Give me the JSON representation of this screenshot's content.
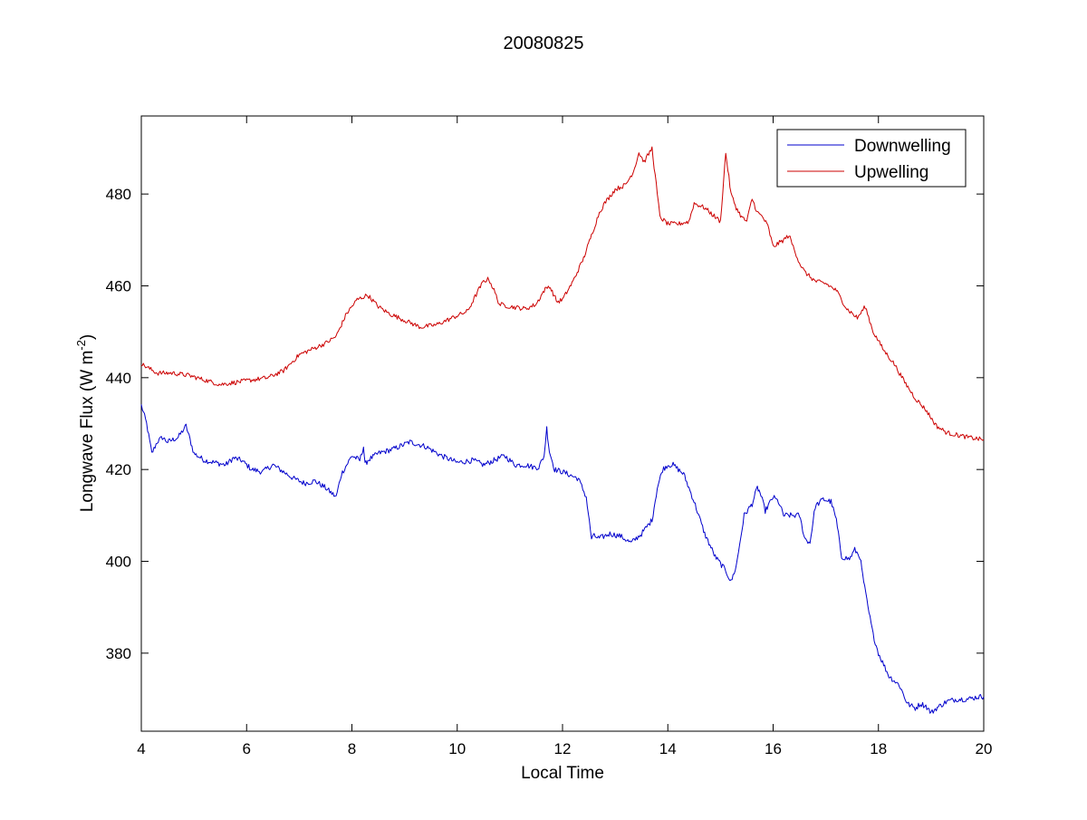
{
  "chart_data": {
    "type": "line",
    "title": "20080825",
    "xlabel": "Local Time",
    "ylabel_main": "Longwave Flux (W m",
    "ylabel_sup": "-2",
    "ylabel_close": ")",
    "xlim": [
      4,
      20
    ],
    "ylim": [
      363,
      497
    ],
    "xticks": [
      4,
      6,
      8,
      10,
      12,
      14,
      16,
      18,
      20
    ],
    "yticks": [
      380,
      400,
      420,
      440,
      460,
      480
    ],
    "grid": false,
    "legend_position": "top-right",
    "series": [
      {
        "name": "Downwelling",
        "color": "#0000cc",
        "noise": 0.6,
        "x": [
          4.0,
          4.1,
          4.2,
          4.3,
          4.4,
          4.5,
          4.6,
          4.7,
          4.85,
          5.0,
          5.2,
          5.4,
          5.6,
          5.75,
          5.9,
          6.1,
          6.3,
          6.5,
          6.7,
          6.9,
          7.1,
          7.3,
          7.5,
          7.7,
          7.8,
          8.0,
          8.15,
          8.22,
          8.25,
          8.3,
          8.5,
          8.8,
          9.1,
          9.4,
          9.7,
          10.0,
          10.3,
          10.5,
          10.7,
          10.9,
          11.1,
          11.3,
          11.45,
          11.55,
          11.65,
          11.7,
          11.75,
          11.85,
          12.0,
          12.3,
          12.45,
          12.55,
          12.6,
          12.7,
          12.9,
          13.1,
          13.3,
          13.5,
          13.7,
          13.8,
          13.9,
          14.0,
          14.1,
          14.3,
          14.5,
          14.7,
          14.9,
          15.1,
          15.2,
          15.3,
          15.45,
          15.6,
          15.7,
          15.75,
          15.85,
          16.0,
          16.1,
          16.2,
          16.35,
          16.5,
          16.6,
          16.7,
          16.8,
          16.95,
          17.1,
          17.2,
          17.3,
          17.45,
          17.55,
          17.65,
          17.7,
          17.8,
          17.9,
          18.0,
          18.2,
          18.4,
          18.55,
          18.7,
          18.8,
          18.9,
          19.0,
          19.1,
          19.3,
          19.5,
          19.7,
          19.9,
          20.0
        ],
        "values": [
          434,
          430,
          423.5,
          426,
          427,
          426,
          426.5,
          427,
          429.5,
          423.5,
          422,
          421.5,
          421,
          422.5,
          422,
          420,
          419.5,
          421,
          419.5,
          418,
          417,
          417.5,
          416,
          414,
          419,
          423,
          422,
          425,
          421,
          422,
          423.5,
          424.5,
          426,
          425,
          423,
          421.5,
          422,
          421,
          422,
          423,
          421,
          421,
          420.5,
          420.5,
          423,
          429,
          424,
          420,
          419.5,
          418,
          414,
          405,
          405.5,
          405,
          406,
          405.5,
          404,
          406,
          409,
          416,
          420,
          421,
          421,
          419,
          413,
          406,
          401,
          398,
          395.5,
          399,
          410,
          412.5,
          416,
          415,
          411,
          414,
          413,
          410,
          410,
          410,
          405,
          404,
          412,
          413.5,
          413,
          409,
          401,
          400.5,
          402.5,
          401,
          397,
          390,
          384,
          380,
          375,
          373,
          369,
          368,
          369,
          368.5,
          367,
          368,
          369.5,
          370,
          370,
          370.5,
          370.5
        ]
      },
      {
        "name": "Upwelling",
        "color": "#cc0000",
        "noise": 0.5,
        "x": [
          4.0,
          4.3,
          4.6,
          4.9,
          5.2,
          5.5,
          5.8,
          6.1,
          6.4,
          6.7,
          7.0,
          7.2,
          7.5,
          7.7,
          7.9,
          8.1,
          8.3,
          8.5,
          8.7,
          9.0,
          9.3,
          9.6,
          9.9,
          10.2,
          10.4,
          10.5,
          10.6,
          10.7,
          10.8,
          11.0,
          11.3,
          11.5,
          11.65,
          11.75,
          11.9,
          12.0,
          12.2,
          12.4,
          12.55,
          12.7,
          12.8,
          13.0,
          13.2,
          13.35,
          13.45,
          13.55,
          13.7,
          13.8,
          13.85,
          14.0,
          14.2,
          14.4,
          14.5,
          14.7,
          14.9,
          15.0,
          15.1,
          15.2,
          15.3,
          15.4,
          15.5,
          15.6,
          15.7,
          15.8,
          15.9,
          16.0,
          16.2,
          16.3,
          16.4,
          16.5,
          16.6,
          16.8,
          17.0,
          17.2,
          17.4,
          17.6,
          17.75,
          17.9,
          18.1,
          18.3,
          18.5,
          18.7,
          18.9,
          19.1,
          19.3,
          19.5,
          19.7,
          20.0
        ],
        "values": [
          443,
          441,
          441,
          440.5,
          439.5,
          438.5,
          439,
          439.5,
          440,
          441.5,
          445,
          446,
          447.5,
          449,
          454,
          457,
          458,
          455.5,
          454,
          452.5,
          451,
          451.5,
          453,
          454.5,
          459,
          461,
          461.5,
          459,
          456,
          455.5,
          455,
          456,
          459,
          460,
          456.5,
          457,
          461,
          466,
          471,
          476,
          478,
          481,
          482,
          485,
          489,
          487,
          490,
          480,
          475,
          473.5,
          473.5,
          474,
          478,
          477,
          475,
          474,
          489,
          480,
          477,
          475,
          474,
          479,
          476,
          475,
          473,
          468.5,
          470,
          471,
          468,
          465,
          463,
          461,
          460.5,
          459,
          455,
          453,
          455.5,
          450,
          446,
          443,
          439,
          435.5,
          433,
          429.5,
          428,
          427.5,
          427,
          426.5
        ]
      }
    ]
  }
}
